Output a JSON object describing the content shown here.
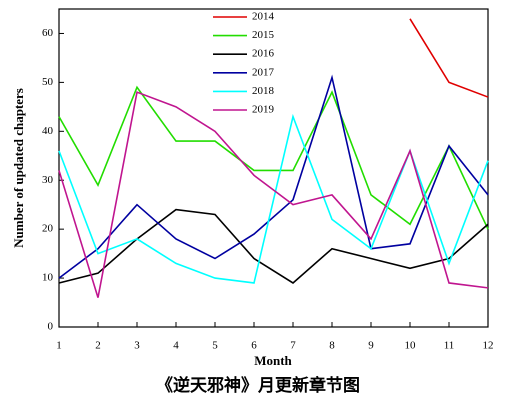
{
  "chart_data": {
    "type": "line",
    "title": "《逆天邪神》月更新章节图",
    "xlabel": "Month",
    "ylabel": "Number of updated chapters",
    "x": [
      1,
      2,
      3,
      4,
      5,
      6,
      7,
      8,
      9,
      10,
      11,
      12
    ],
    "series": [
      {
        "name": "2014",
        "color": "#e00000",
        "values": [
          null,
          null,
          null,
          null,
          null,
          null,
          null,
          null,
          null,
          63,
          50,
          47
        ]
      },
      {
        "name": "2015",
        "color": "#22dd00",
        "values": [
          43,
          29,
          49,
          38,
          38,
          32,
          32,
          48,
          27,
          21,
          37,
          20
        ]
      },
      {
        "name": "2016",
        "color": "#000000",
        "values": [
          9,
          11,
          18,
          24,
          23,
          14,
          9,
          16,
          14,
          12,
          14,
          21
        ]
      },
      {
        "name": "2017",
        "color": "#0000a0",
        "values": [
          10,
          16,
          25,
          18,
          14,
          19,
          26,
          51,
          16,
          17,
          37,
          27
        ]
      },
      {
        "name": "2018",
        "color": "#00ffff",
        "values": [
          36,
          15,
          18,
          13,
          10,
          9,
          43,
          22,
          16,
          36,
          13,
          34
        ]
      },
      {
        "name": "2019",
        "color": "#c0158f",
        "values": [
          32,
          6,
          48,
          45,
          40,
          31,
          25,
          27,
          18,
          36,
          9,
          8
        ]
      }
    ],
    "xlim": [
      1,
      12
    ],
    "xticks": [
      1,
      2,
      3,
      4,
      5,
      6,
      7,
      8,
      9,
      10,
      11,
      12
    ],
    "ylim": [
      0,
      65
    ],
    "yticks": [
      0,
      10,
      20,
      30,
      40,
      50,
      60
    ]
  }
}
